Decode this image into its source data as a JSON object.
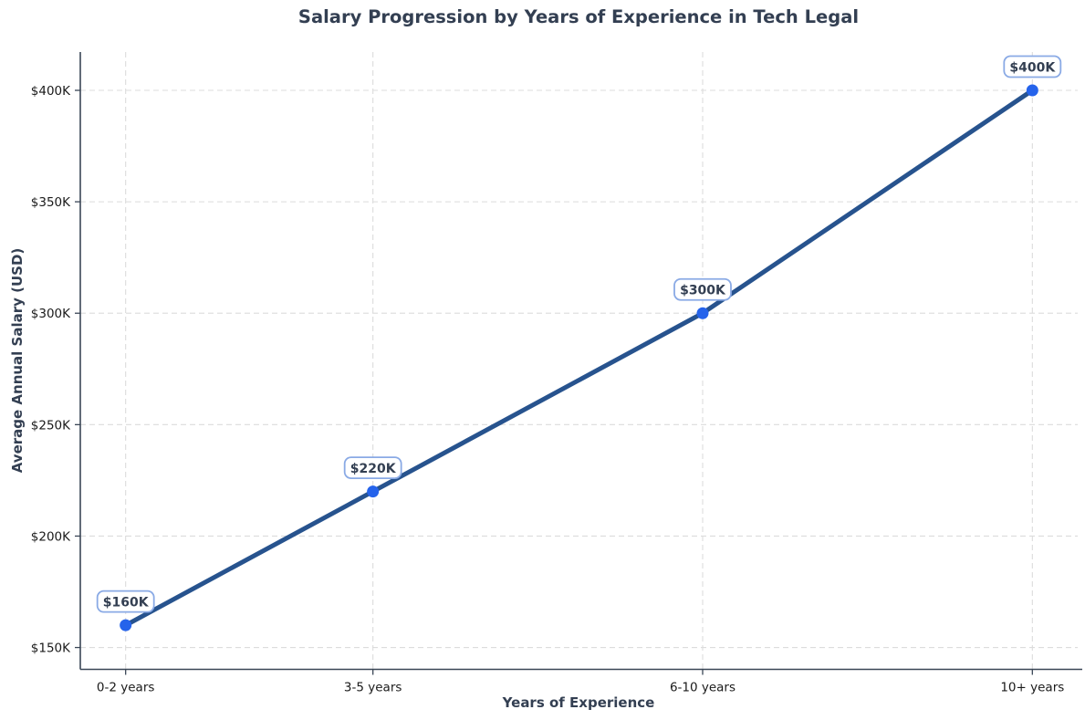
{
  "chart_data": {
    "type": "line",
    "title": "Salary Progression by Years of Experience in Tech Legal",
    "xlabel": "Years of Experience",
    "ylabel": "Average Annual Salary (USD)",
    "categories": [
      "0-2 years",
      "3-5 years",
      "6-10 years",
      "10+ years"
    ],
    "x_numeric": [
      1,
      4,
      8,
      12
    ],
    "values": [
      160,
      220,
      300,
      400
    ],
    "point_labels": [
      "$160K",
      "$220K",
      "$300K",
      "$400K"
    ],
    "series": [
      {
        "name": "Average Annual Salary",
        "values": [
          160,
          220,
          300,
          400
        ]
      }
    ],
    "yticks": [
      150,
      200,
      250,
      300,
      350,
      400
    ],
    "ytick_labels": [
      "$150K",
      "$200K",
      "$250K",
      "$300K",
      "$350K",
      "$400K"
    ],
    "xlim": [
      0.45,
      12.55
    ],
    "ylim": [
      140.2,
      417.2
    ],
    "grid": true,
    "grid_style": "dashed",
    "legend": false,
    "colors": {
      "background": "#ffffff",
      "line": "#27538e",
      "marker": "#2563eb",
      "grid": "#dcdcdc",
      "spine": "#3a4656",
      "title_text": "#333f52",
      "axis_label_text": "#333f52",
      "tick_text": "#1a1a1a",
      "annotation_border": "#8aaae5",
      "annotation_text": "#333f52",
      "annotation_bg": "#ffffff"
    }
  }
}
